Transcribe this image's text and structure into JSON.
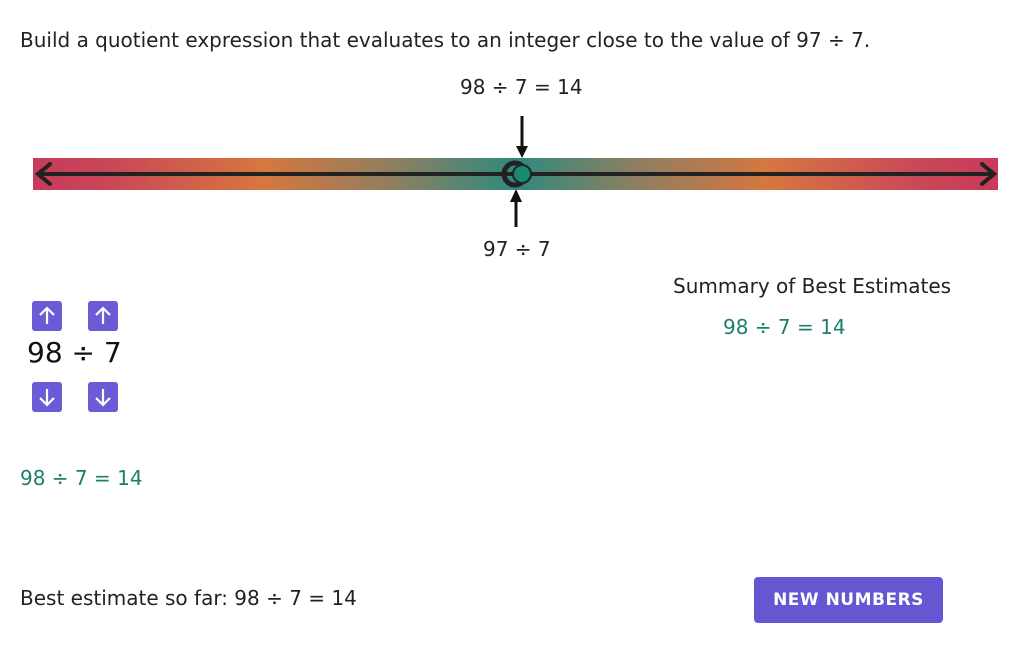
{
  "prompt": "Build a quotient expression that evaluates to an integer close to the value of 97 ÷ 7.",
  "number_line": {
    "estimate_label": "98 ÷ 7 = 14",
    "target_label": "97 ÷ 7"
  },
  "expression_builder": {
    "expression": "98 ÷ 7"
  },
  "result": "98 ÷ 7 = 14",
  "summary": {
    "title": "Summary of Best Estimates",
    "items": [
      "98 ÷ 7 = 14"
    ]
  },
  "best_estimate": "Best estimate so far: 98 ÷ 7 = 14",
  "button": "NEW NUMBERS"
}
